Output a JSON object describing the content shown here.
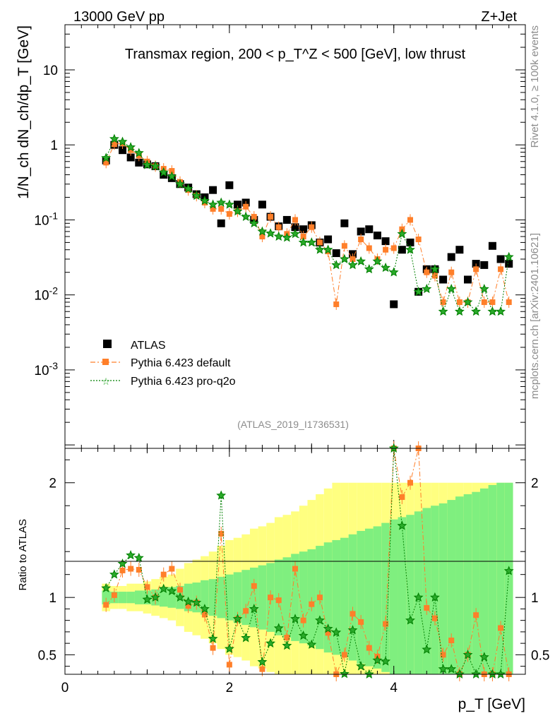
{
  "header": {
    "left": "13000 GeV pp",
    "right": "Z+Jet"
  },
  "side": {
    "rivet": "Rivet 4.1.0, ≥ 100k events",
    "mcplots": "mcplots.cern.ch [arXiv:2401.10621]"
  },
  "chart_data": {
    "type": "scatter",
    "title": "Transmax region, 200 < p_T^Z < 500 [GeV], low thrust",
    "analysis_id": "(ATLAS_2019_I1736531)",
    "xlabel": "p_T [GeV]",
    "ylabel": "1/N_ch dN_ch/dp_T [GeV]",
    "ratio_ylabel": "Ratio to ATLAS",
    "xlim": [
      0,
      5.6
    ],
    "ylim": [
      9e-05,
      40
    ],
    "yscale": "log",
    "ratio_ylim": [
      0.33,
      2.3
    ],
    "x_ticks": [
      "0",
      "2",
      "4"
    ],
    "y_ticks": [
      "10",
      "1",
      "10^-1",
      "10^-2",
      "10^-3"
    ],
    "ratio_ticks": [
      "2",
      "1",
      "0.5"
    ],
    "legend": [
      "ATLAS",
      "Pythia 6.423 default",
      "Pythia 6.423 pro-q2o"
    ],
    "x": [
      0.5,
      0.6,
      0.7,
      0.8,
      0.9,
      1.0,
      1.1,
      1.2,
      1.3,
      1.4,
      1.5,
      1.6,
      1.7,
      1.8,
      1.9,
      2.0,
      2.1,
      2.2,
      2.3,
      2.4,
      2.5,
      2.6,
      2.7,
      2.8,
      2.9,
      3.0,
      3.1,
      3.2,
      3.3,
      3.4,
      3.5,
      3.6,
      3.7,
      3.8,
      3.9,
      4.0,
      4.1,
      4.2,
      4.3,
      4.4,
      4.5,
      4.6,
      4.7,
      4.8,
      4.9,
      5.0,
      5.1,
      5.2,
      5.3,
      5.4
    ],
    "series": [
      {
        "name": "ATLAS",
        "color": "#000000",
        "values": [
          0.62,
          1.0,
          0.85,
          0.68,
          0.58,
          0.55,
          0.52,
          0.4,
          0.36,
          0.3,
          0.27,
          0.22,
          0.2,
          0.25,
          0.09,
          0.29,
          0.16,
          0.17,
          0.1,
          0.16,
          0.11,
          0.082,
          0.1,
          0.08,
          0.075,
          0.085,
          0.05,
          0.055,
          0.036,
          0.09,
          0.035,
          0.07,
          0.075,
          0.062,
          0.052,
          0.0075,
          0.04,
          0.05,
          0.011,
          0.022,
          0.022,
          0.016,
          0.032,
          0.04,
          0.016,
          0.026,
          0.025,
          0.045,
          0.03,
          0.026
        ]
      },
      {
        "name": "Pythia 6.423 default",
        "color": "#ff7f2a",
        "values": [
          0.58,
          1.02,
          1.05,
          0.85,
          0.72,
          0.6,
          0.52,
          0.48,
          0.45,
          0.32,
          0.25,
          0.21,
          0.17,
          0.14,
          0.14,
          0.12,
          0.13,
          0.15,
          0.11,
          0.06,
          0.11,
          0.08,
          0.065,
          0.1,
          0.06,
          0.08,
          0.05,
          0.038,
          0.0075,
          0.045,
          0.03,
          0.055,
          0.042,
          0.03,
          0.04,
          0.042,
          0.075,
          0.1,
          0.055,
          0.02,
          0.018,
          0.008,
          0.02,
          0.008,
          0.008,
          0.022,
          0.008,
          0.008,
          0.022,
          0.008
        ]
      },
      {
        "name": "Pythia 6.423 pro-q2o",
        "color": "#007f00",
        "values": [
          0.67,
          1.2,
          1.1,
          0.93,
          0.78,
          0.54,
          0.52,
          0.43,
          0.38,
          0.3,
          0.26,
          0.21,
          0.18,
          0.16,
          0.17,
          0.16,
          0.13,
          0.11,
          0.09,
          0.07,
          0.066,
          0.06,
          0.058,
          0.065,
          0.05,
          0.05,
          0.04,
          0.04,
          0.025,
          0.03,
          0.025,
          0.028,
          0.022,
          0.028,
          0.023,
          0.02,
          0.065,
          0.04,
          0.011,
          0.012,
          0.022,
          0.006,
          0.012,
          0.006,
          0.008,
          0.006,
          0.012,
          0.006,
          0.006,
          0.032
        ]
      }
    ],
    "band_inner": [
      0.06,
      0.05,
      0.05,
      0.05,
      0.06,
      0.06,
      0.07,
      0.08,
      0.09,
      0.1,
      0.12,
      0.13,
      0.15,
      0.16,
      0.18,
      0.2,
      0.22,
      0.24,
      0.26,
      0.28,
      0.3,
      0.33,
      0.35,
      0.38,
      0.4,
      0.42,
      0.45,
      0.48,
      0.5,
      0.52,
      0.55,
      0.58,
      0.6,
      0.62,
      0.65,
      0.68,
      0.7,
      0.72,
      0.75,
      0.78,
      0.8,
      0.82,
      0.85,
      0.88,
      0.9,
      0.92,
      0.95,
      0.98,
      1.0,
      1.0
    ],
    "band_outer": [
      0.12,
      0.1,
      0.1,
      0.12,
      0.12,
      0.14,
      0.16,
      0.18,
      0.2,
      0.25,
      0.3,
      0.33,
      0.36,
      0.4,
      0.45,
      0.5,
      0.52,
      0.55,
      0.6,
      0.62,
      0.65,
      0.7,
      0.72,
      0.75,
      0.8,
      0.85,
      0.9,
      0.95,
      1.0,
      1.0,
      1.0,
      1.0,
      1.0,
      1.0,
      1.0,
      1.0,
      1.0,
      1.0,
      1.0,
      1.0,
      1.0,
      1.0,
      1.0,
      1.0,
      1.0,
      1.0,
      1.0,
      1.0,
      1.0,
      1.0
    ]
  }
}
